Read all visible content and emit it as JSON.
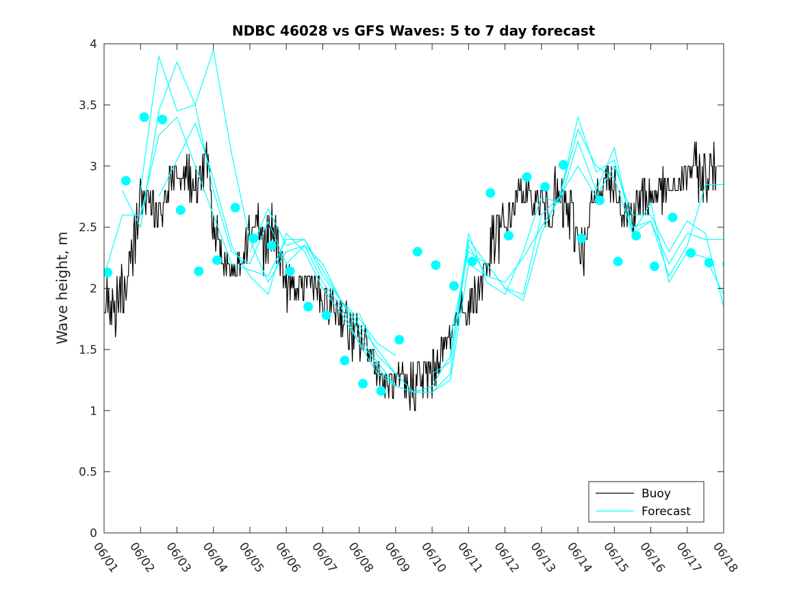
{
  "chart_data": {
    "type": "line",
    "title": "NDBC 46028 vs GFS Waves: 5 to 7 day forecast",
    "xlabel": "",
    "ylabel": "Wave height, m",
    "xlim": [
      0,
      17
    ],
    "ylim": [
      0,
      4
    ],
    "grid": false,
    "legend_placement": "bottom-right",
    "x_tick_values": [
      0,
      1,
      2,
      3,
      4,
      5,
      6,
      7,
      8,
      9,
      10,
      11,
      12,
      13,
      14,
      15,
      16,
      17
    ],
    "x_tick_labels": [
      "06/01",
      "06/02",
      "06/03",
      "06/04",
      "06/05",
      "06/06",
      "06/07",
      "06/08",
      "06/09",
      "06/10",
      "06/11",
      "06/12",
      "06/13",
      "06/14",
      "06/15",
      "06/16",
      "06/17",
      "06/18"
    ],
    "y_tick_values": [
      0,
      0.5,
      1,
      1.5,
      2,
      2.5,
      3,
      3.5,
      4
    ],
    "y_tick_labels": [
      "0",
      "0.5",
      "1",
      "1.5",
      "2",
      "2.5",
      "3",
      "3.5",
      "4"
    ],
    "colors": {
      "buoy": "#000000",
      "forecast": "#00ffff",
      "markers": "#00ffff",
      "axes": "#262626"
    },
    "legend": [
      {
        "name": "Buoy",
        "color": "#000000"
      },
      {
        "name": "Forecast",
        "color": "#00ffff"
      }
    ],
    "series": [
      {
        "name": "Buoy",
        "x": [
          0,
          0.3,
          0.5,
          0.7,
          0.9,
          1.0,
          1.2,
          1.4,
          1.6,
          1.8,
          2.0,
          2.2,
          2.4,
          2.6,
          2.8,
          3.0,
          3.2,
          3.4,
          3.6,
          3.8,
          4.0,
          4.2,
          4.4,
          4.6,
          4.8,
          5.0,
          5.2,
          5.4,
          5.6,
          5.8,
          6.0,
          6.2,
          6.4,
          6.6,
          6.8,
          7.0,
          7.2,
          7.4,
          7.6,
          7.8,
          8.0,
          8.2,
          8.4,
          8.6,
          8.8,
          9.0,
          9.2,
          9.4,
          9.6,
          9.8,
          10.0,
          10.2,
          10.4,
          10.6,
          10.8,
          11.0,
          11.2,
          11.4,
          11.6,
          11.8,
          12.0,
          12.2,
          12.4,
          12.6,
          12.8,
          13.0,
          13.2,
          13.4,
          13.6,
          13.8,
          14.0,
          14.2,
          14.4,
          14.6,
          14.8,
          15.0,
          15.2,
          15.4,
          15.6,
          15.8,
          16.0,
          16.2,
          16.4,
          16.6,
          16.8,
          17.0
        ],
        "values": [
          1.95,
          1.8,
          2.0,
          2.1,
          2.5,
          2.8,
          2.7,
          2.65,
          2.6,
          2.85,
          2.85,
          3.0,
          2.9,
          2.7,
          3.1,
          2.55,
          2.3,
          2.2,
          2.15,
          2.25,
          2.5,
          2.55,
          2.3,
          2.45,
          2.4,
          2.0,
          2.0,
          1.95,
          2.1,
          2.0,
          1.85,
          1.85,
          1.85,
          1.75,
          1.6,
          1.55,
          1.55,
          1.4,
          1.3,
          1.2,
          1.2,
          1.2,
          1.2,
          1.25,
          1.25,
          1.3,
          1.45,
          1.55,
          1.7,
          1.85,
          1.85,
          1.95,
          2.1,
          2.3,
          2.45,
          2.5,
          2.65,
          2.8,
          2.75,
          2.7,
          2.7,
          2.65,
          2.75,
          2.65,
          2.6,
          2.4,
          2.3,
          2.7,
          2.8,
          2.9,
          2.85,
          2.7,
          2.6,
          2.65,
          2.75,
          2.75,
          2.8,
          2.8,
          2.8,
          2.85,
          2.95,
          3.0,
          2.9,
          2.95,
          3.0,
          3.0
        ]
      },
      {
        "name": "Forecast",
        "members": [
          {
            "x": [
              0,
              0.5,
              1.0,
              1.5,
              2.0,
              2.5,
              3.0,
              3.5,
              4.0,
              4.5,
              5.0,
              5.5,
              6.0,
              6.5,
              7.0,
              7.5,
              8.0
            ],
            "values": [
              2.1,
              2.6,
              2.6,
              3.25,
              3.4,
              3.0,
              2.6,
              2.2,
              2.15,
              2.1,
              2.4,
              2.4,
              2.1,
              1.9,
              1.75,
              1.55,
              1.45
            ]
          },
          {
            "x": [
              0.5,
              1.0,
              1.5,
              2.0,
              2.5,
              3.0,
              3.5,
              4.0,
              4.5,
              5.0,
              5.5,
              6.0,
              6.5,
              7.0,
              7.5,
              8.0
            ],
            "values": [
              2.8,
              2.5,
              3.45,
              3.85,
              3.5,
              2.8,
              2.3,
              2.2,
              2.55,
              2.2,
              2.35,
              2.2,
              1.9,
              1.65,
              1.35,
              1.2
            ]
          },
          {
            "x": [
              1.0,
              1.5,
              2.0,
              2.5,
              3.0,
              3.5,
              4.0,
              4.5,
              5.0,
              5.5,
              6.0,
              6.5,
              7.0,
              7.5,
              8.0,
              8.5,
              9.0
            ],
            "values": [
              2.8,
              3.9,
              3.45,
              3.5,
              3.95,
              3.1,
              2.4,
              2.05,
              2.3,
              2.35,
              2.05,
              1.85,
              1.55,
              1.3,
              1.2,
              1.15,
              1.2
            ]
          },
          {
            "x": [
              1.5,
              2.0,
              2.5,
              3.0,
              3.5,
              4.0,
              4.5,
              5.0,
              5.5,
              6.0,
              6.5,
              7.0,
              7.5,
              8.0,
              8.5,
              9.0,
              9.5,
              10.0,
              10.5
            ],
            "values": [
              2.75,
              3.05,
              3.35,
              2.9,
              2.35,
              2.1,
              1.95,
              2.45,
              2.3,
              2.0,
              1.8,
              1.55,
              1.4,
              1.2,
              1.15,
              1.2,
              1.45,
              2.35,
              2.1
            ]
          },
          {
            "x": [
              4.0,
              4.5,
              5.0,
              5.5,
              6.0,
              6.5,
              7.0,
              7.5,
              8.0,
              8.5,
              9.0,
              9.5,
              10.0,
              10.5,
              11.0,
              11.5,
              12.0,
              12.5,
              13.0,
              13.5,
              14.0,
              14.5,
              15.0,
              15.5,
              16.0,
              16.5,
              17.0
            ],
            "values": [
              2.3,
              2.65,
              2.35,
              2.4,
              2.15,
              1.9,
              1.7,
              1.5,
              1.3,
              1.15,
              1.15,
              1.3,
              2.4,
              2.2,
              2.0,
              1.95,
              2.6,
              2.75,
              3.3,
              3.0,
              2.9,
              2.45,
              2.55,
              2.2,
              2.45,
              2.4,
              2.4
            ]
          },
          {
            "x": [
              7.0,
              7.5,
              8.0,
              8.5,
              9.0,
              9.5,
              10.0,
              10.5,
              11.0,
              11.5,
              12.0,
              12.5,
              13.0,
              13.5,
              14.0,
              14.5,
              15.0,
              15.5,
              16.0,
              16.5,
              17.0
            ],
            "values": [
              1.8,
              1.45,
              1.3,
              1.15,
              1.15,
              1.25,
              2.2,
              2.1,
              2.05,
              2.25,
              2.5,
              2.75,
              3.4,
              2.95,
              3.05,
              2.5,
              2.55,
              2.1,
              2.35,
              2.85,
              2.85
            ]
          },
          {
            "x": [
              9.0,
              9.5,
              10.0,
              10.5,
              11.0,
              11.5,
              12.0,
              12.5,
              13.0,
              13.5,
              14.0,
              14.5,
              15.0,
              15.5,
              16.0,
              16.5,
              17.0
            ],
            "values": [
              1.3,
              1.4,
              2.45,
              2.05,
              1.95,
              2.3,
              2.75,
              2.7,
              3.2,
              2.8,
              3.15,
              2.45,
              2.7,
              2.05,
              2.3,
              2.25,
              1.95
            ]
          },
          {
            "x": [
              9.5,
              10.0,
              10.5,
              11.0,
              11.5,
              12.0,
              12.5,
              13.0,
              13.5,
              14.0,
              14.5,
              15.0,
              15.5,
              16.0,
              16.5,
              17.0
            ],
            "values": [
              1.6,
              2.3,
              2.2,
              2.0,
              1.9,
              2.45,
              2.75,
              3.0,
              2.75,
              3.0,
              2.6,
              2.6,
              2.3,
              2.55,
              2.45,
              1.85
            ]
          }
        ]
      },
      {
        "name": "Forecast points",
        "x": [
          0.1,
          0.6,
          1.1,
          1.6,
          2.1,
          2.6,
          3.1,
          3.6,
          4.1,
          4.6,
          5.1,
          5.6,
          6.1,
          6.6,
          7.1,
          7.6,
          8.1,
          8.6,
          9.1,
          9.6,
          10.1,
          10.6,
          11.1,
          11.6,
          12.1,
          12.6,
          13.1,
          13.6,
          14.1,
          14.6,
          15.1,
          15.6,
          16.1,
          16.6,
          17.1
        ],
        "values": [
          2.13,
          2.88,
          3.4,
          3.38,
          2.64,
          2.14,
          2.23,
          2.66,
          2.41,
          2.35,
          2.14,
          1.85,
          1.78,
          1.41,
          1.22,
          1.16,
          1.58,
          2.3,
          2.19,
          2.02,
          2.22,
          2.78,
          2.43,
          2.91,
          2.83,
          3.01,
          2.41,
          2.72,
          2.22,
          2.43,
          2.18,
          2.58,
          2.29,
          2.21,
          2.2
        ]
      }
    ]
  }
}
